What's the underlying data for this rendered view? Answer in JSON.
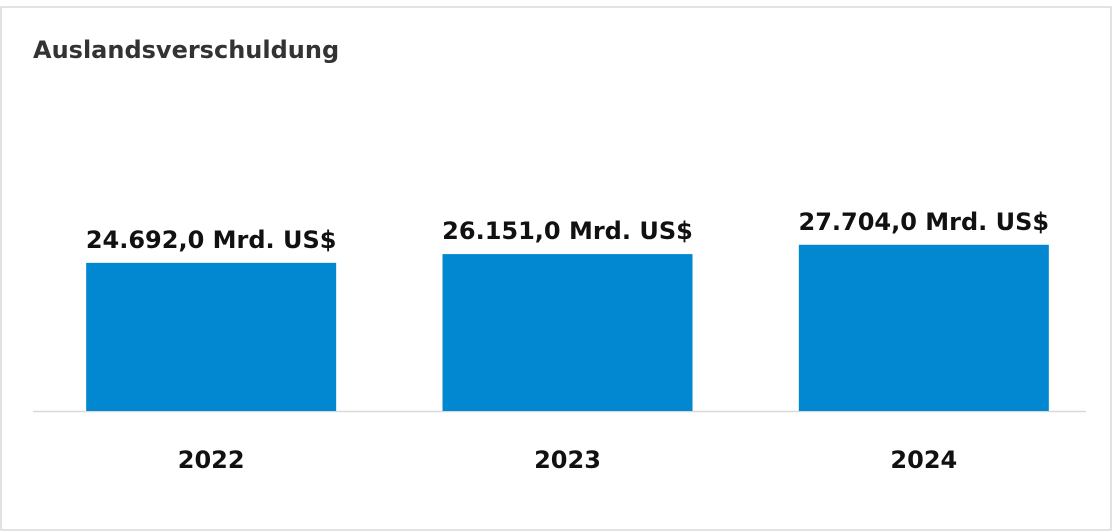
{
  "chart_data": {
    "type": "bar",
    "title": "Auslandsverschuldung",
    "categories": [
      "2022",
      "2023",
      "2024"
    ],
    "values": [
      24692.0,
      26151.0,
      27704.0
    ],
    "value_labels": [
      "24.692,0 Mrd. US$",
      "26.151,0 Mrd. US$",
      "27.704,0 Mrd. US$"
    ],
    "color": "#0288d1",
    "ylim": [
      0,
      40000
    ]
  }
}
